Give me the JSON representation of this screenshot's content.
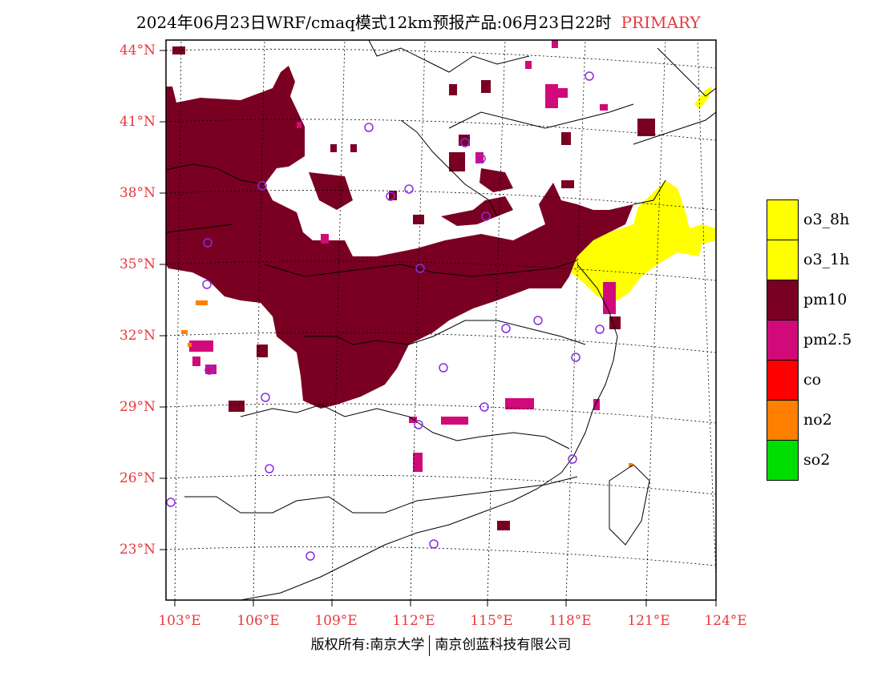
{
  "title": {
    "main": "2024年06月23日WRF/cmaq模式12km预报产品:06月23日22时",
    "tag": "PRIMARY"
  },
  "axes": {
    "lat_labels": [
      "44°N",
      "41°N",
      "38°N",
      "35°N",
      "32°N",
      "29°N",
      "26°N",
      "23°N"
    ],
    "lon_labels": [
      "103°E",
      "106°E",
      "109°E",
      "112°E",
      "115°E",
      "118°E",
      "121°E",
      "124°E"
    ]
  },
  "legend": [
    {
      "label": "o3_8h",
      "color": "#ffff00"
    },
    {
      "label": "o3_1h",
      "color": "#ffff00"
    },
    {
      "label": "pm10",
      "color": "#7a0022"
    },
    {
      "label": "pm2.5",
      "color": "#d10a7a"
    },
    {
      "label": "co",
      "color": "#ff0000"
    },
    {
      "label": "no2",
      "color": "#ff7f00"
    },
    {
      "label": "so2",
      "color": "#00dd00"
    }
  ],
  "footer": {
    "left": "版权所有:南京大学",
    "right": "南京创蓝科技有限公司"
  },
  "colors": {
    "pm10": "#7a0022",
    "pm25": "#d10a7a",
    "o3": "#ffff00",
    "no2": "#ff7f00",
    "site": "#8a2be2",
    "label_red": "#e8383d"
  }
}
